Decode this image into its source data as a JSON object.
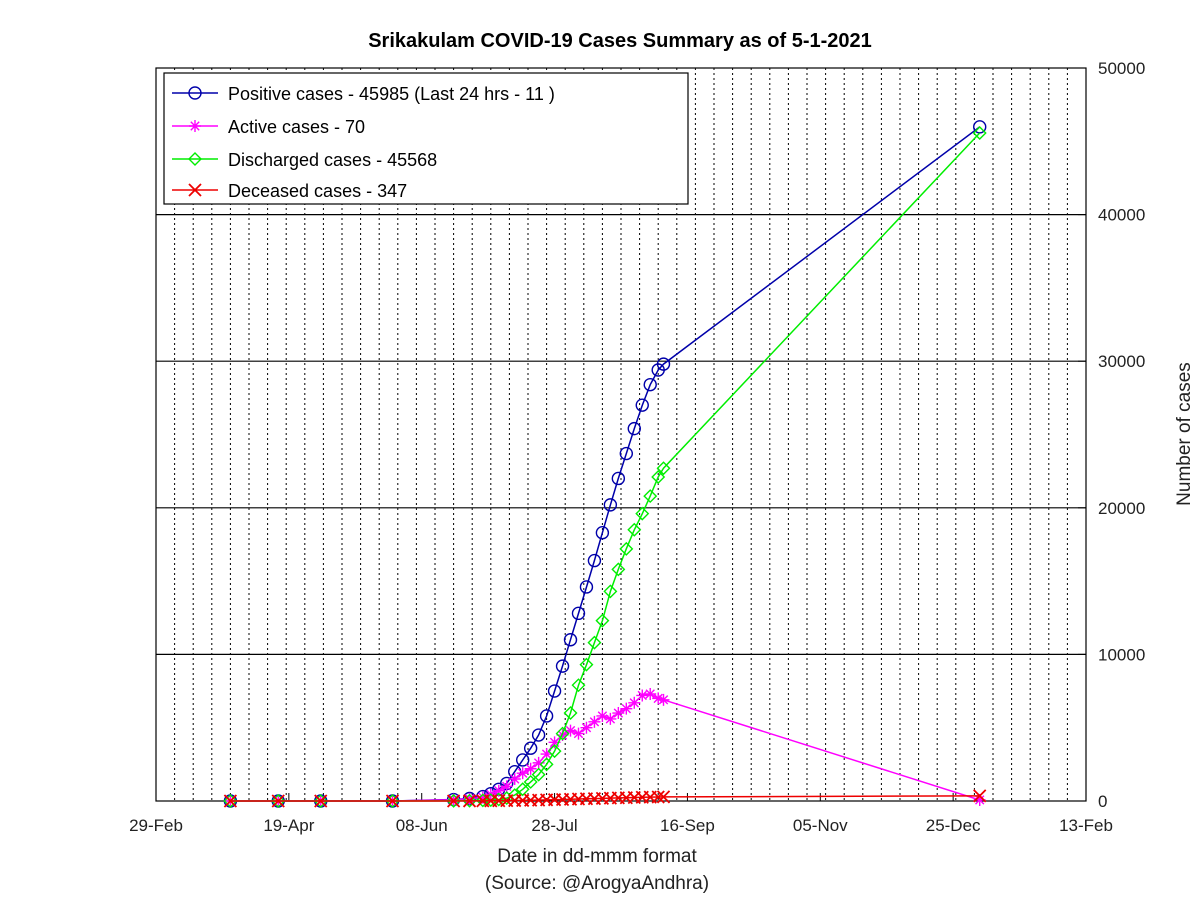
{
  "chart_data": {
    "type": "line",
    "title": "Srikakulam COVID-19 Cases Summary as of 5-1-2021",
    "xlabel": "Date in dd-mmm format",
    "xlabel2": "(Source: @ArogyaAndhra)",
    "ylabel": "Number of cases",
    "ylim": [
      0,
      50000
    ],
    "y_ticks": [
      "0",
      "10000",
      "20000",
      "30000",
      "40000",
      "50000"
    ],
    "x_ticks": [
      "29-Feb",
      "19-Apr",
      "08-Jun",
      "28-Jul",
      "16-Sep",
      "05-Nov",
      "25-Dec",
      "13-Feb"
    ],
    "x_range": [
      "2020-02-29",
      "2021-02-13"
    ],
    "y_axis_side": "right",
    "grid": "x dotted minor, y solid major",
    "legend_position": "top-left",
    "series": [
      {
        "name": "Positive cases - 45985 (Last 24 hrs - 11 )",
        "color": "#0000aa",
        "marker": "circle",
        "points": [
          [
            "2020-03-28",
            0
          ],
          [
            "2020-04-15",
            0
          ],
          [
            "2020-05-01",
            0
          ],
          [
            "2020-05-28",
            0
          ],
          [
            "2020-06-20",
            100
          ],
          [
            "2020-06-26",
            170
          ],
          [
            "2020-07-01",
            300
          ],
          [
            "2020-07-04",
            500
          ],
          [
            "2020-07-07",
            800
          ],
          [
            "2020-07-10",
            1200
          ],
          [
            "2020-07-13",
            2000
          ],
          [
            "2020-07-16",
            2800
          ],
          [
            "2020-07-19",
            3600
          ],
          [
            "2020-07-22",
            4500
          ],
          [
            "2020-07-25",
            5800
          ],
          [
            "2020-07-28",
            7500
          ],
          [
            "2020-07-31",
            9200
          ],
          [
            "2020-08-03",
            11000
          ],
          [
            "2020-08-06",
            12800
          ],
          [
            "2020-08-09",
            14600
          ],
          [
            "2020-08-12",
            16400
          ],
          [
            "2020-08-15",
            18300
          ],
          [
            "2020-08-18",
            20200
          ],
          [
            "2020-08-21",
            22000
          ],
          [
            "2020-08-24",
            23700
          ],
          [
            "2020-08-27",
            25400
          ],
          [
            "2020-08-30",
            27000
          ],
          [
            "2020-09-02",
            28400
          ],
          [
            "2020-09-05",
            29400
          ],
          [
            "2020-09-07",
            29800
          ],
          [
            "2021-01-04",
            45985
          ]
        ]
      },
      {
        "name": "Active cases - 70",
        "color": "#ff00ff",
        "marker": "star",
        "points": [
          [
            "2020-03-28",
            0
          ],
          [
            "2020-04-15",
            0
          ],
          [
            "2020-05-01",
            0
          ],
          [
            "2020-05-28",
            0
          ],
          [
            "2020-06-20",
            90
          ],
          [
            "2020-06-26",
            150
          ],
          [
            "2020-07-01",
            250
          ],
          [
            "2020-07-04",
            450
          ],
          [
            "2020-07-07",
            700
          ],
          [
            "2020-07-10",
            1000
          ],
          [
            "2020-07-13",
            1500
          ],
          [
            "2020-07-16",
            1900
          ],
          [
            "2020-07-19",
            2200
          ],
          [
            "2020-07-22",
            2600
          ],
          [
            "2020-07-25",
            3200
          ],
          [
            "2020-07-28",
            4000
          ],
          [
            "2020-07-31",
            4500
          ],
          [
            "2020-08-03",
            4800
          ],
          [
            "2020-08-06",
            4600
          ],
          [
            "2020-08-09",
            5000
          ],
          [
            "2020-08-12",
            5400
          ],
          [
            "2020-08-15",
            5800
          ],
          [
            "2020-08-18",
            5600
          ],
          [
            "2020-08-21",
            6000
          ],
          [
            "2020-08-24",
            6300
          ],
          [
            "2020-08-27",
            6700
          ],
          [
            "2020-08-30",
            7200
          ],
          [
            "2020-09-02",
            7300
          ],
          [
            "2020-09-05",
            7000
          ],
          [
            "2020-09-07",
            6900
          ],
          [
            "2021-01-04",
            70
          ]
        ]
      },
      {
        "name": "Discharged cases - 45568",
        "color": "#00ee00",
        "marker": "diamond",
        "points": [
          [
            "2020-03-28",
            0
          ],
          [
            "2020-04-15",
            0
          ],
          [
            "2020-05-01",
            0
          ],
          [
            "2020-05-28",
            0
          ],
          [
            "2020-06-20",
            10
          ],
          [
            "2020-06-26",
            20
          ],
          [
            "2020-07-01",
            40
          ],
          [
            "2020-07-04",
            60
          ],
          [
            "2020-07-07",
            100
          ],
          [
            "2020-07-10",
            200
          ],
          [
            "2020-07-13",
            400
          ],
          [
            "2020-07-16",
            800
          ],
          [
            "2020-07-19",
            1300
          ],
          [
            "2020-07-22",
            1800
          ],
          [
            "2020-07-25",
            2500
          ],
          [
            "2020-07-28",
            3400
          ],
          [
            "2020-07-31",
            4600
          ],
          [
            "2020-08-03",
            6000
          ],
          [
            "2020-08-06",
            7900
          ],
          [
            "2020-08-09",
            9300
          ],
          [
            "2020-08-12",
            10800
          ],
          [
            "2020-08-15",
            12300
          ],
          [
            "2020-08-18",
            14300
          ],
          [
            "2020-08-21",
            15800
          ],
          [
            "2020-08-24",
            17200
          ],
          [
            "2020-08-27",
            18500
          ],
          [
            "2020-08-30",
            19600
          ],
          [
            "2020-09-02",
            20800
          ],
          [
            "2020-09-05",
            22100
          ],
          [
            "2020-09-07",
            22700
          ],
          [
            "2021-01-04",
            45568
          ]
        ]
      },
      {
        "name": "Deceased cases - 347",
        "color": "#ee0000",
        "marker": "x",
        "points": [
          [
            "2020-03-28",
            0
          ],
          [
            "2020-04-15",
            0
          ],
          [
            "2020-05-01",
            0
          ],
          [
            "2020-05-28",
            0
          ],
          [
            "2020-06-20",
            2
          ],
          [
            "2020-06-26",
            4
          ],
          [
            "2020-07-01",
            8
          ],
          [
            "2020-07-04",
            12
          ],
          [
            "2020-07-07",
            18
          ],
          [
            "2020-07-10",
            24
          ],
          [
            "2020-07-13",
            30
          ],
          [
            "2020-07-16",
            38
          ],
          [
            "2020-07-19",
            48
          ],
          [
            "2020-07-22",
            60
          ],
          [
            "2020-07-25",
            75
          ],
          [
            "2020-07-28",
            90
          ],
          [
            "2020-07-31",
            105
          ],
          [
            "2020-08-03",
            120
          ],
          [
            "2020-08-06",
            135
          ],
          [
            "2020-08-09",
            150
          ],
          [
            "2020-08-12",
            165
          ],
          [
            "2020-08-15",
            180
          ],
          [
            "2020-08-18",
            195
          ],
          [
            "2020-08-21",
            210
          ],
          [
            "2020-08-24",
            225
          ],
          [
            "2020-08-27",
            240
          ],
          [
            "2020-08-30",
            255
          ],
          [
            "2020-09-02",
            265
          ],
          [
            "2020-09-05",
            275
          ],
          [
            "2020-09-07",
            280
          ],
          [
            "2021-01-04",
            347
          ]
        ]
      }
    ]
  }
}
